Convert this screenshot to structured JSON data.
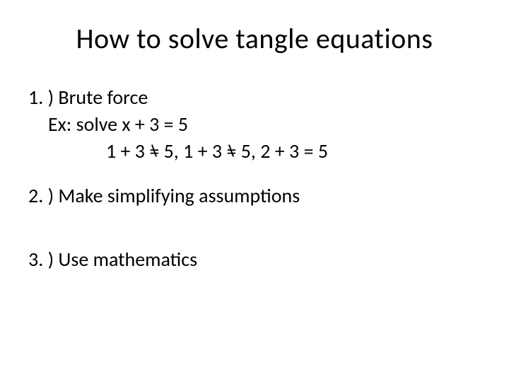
{
  "title": "How to solve tangle equations",
  "items": {
    "p1": {
      "heading": "1. )  Brute force",
      "ex_label": "Ex:   solve x + 3 = 5",
      "trial1_lhs": "1 + 3 ",
      "trial1_eq": "=",
      "trial1_rhs": " 5,",
      "trial2_lhs": "   1 + 3 ",
      "trial2_eq": "=",
      "trial2_rhs": " 5,",
      "trial3": "   2 + 3 = 5"
    },
    "p2": "2. )  Make simplifying assumptions",
    "p3": "3. )  Use mathematics"
  },
  "colors": {
    "text": "#000000",
    "background": "#ffffff"
  },
  "typography": {
    "title_fontsize": 40,
    "body_fontsize": 28,
    "font_family": "Calibri"
  }
}
